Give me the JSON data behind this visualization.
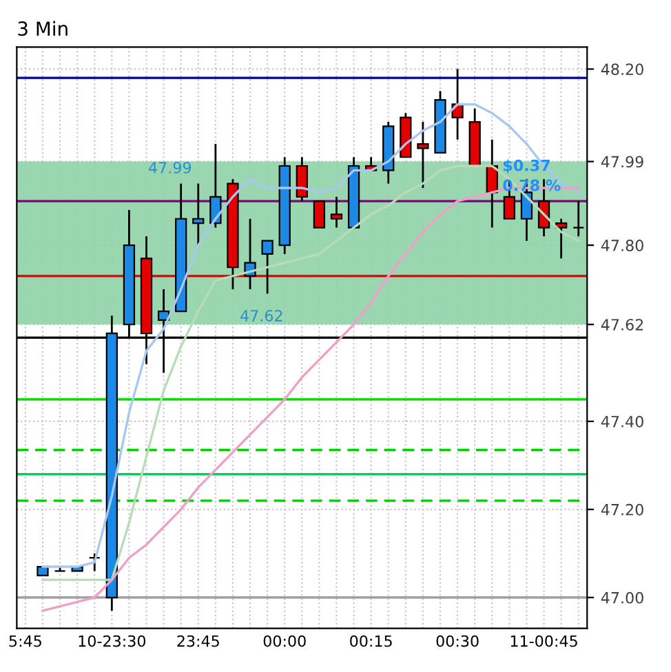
{
  "chart_data": {
    "type": "candlestick",
    "title": "3 Min",
    "categories": [
      "5:45",
      null,
      null,
      null,
      null,
      "10-23:30",
      null,
      null,
      null,
      null,
      "23:45",
      null,
      null,
      null,
      null,
      "00:00",
      null,
      null,
      null,
      null,
      "00:15",
      null,
      null,
      null,
      null,
      "00:30",
      null,
      null,
      null,
      null,
      "11-00:45",
      null,
      null
    ],
    "ohlc": [
      null,
      [
        47.05,
        47.07,
        47.05,
        47.07
      ],
      [
        47.06,
        47.07,
        47.06,
        47.06
      ],
      [
        47.06,
        47.07,
        47.06,
        47.07
      ],
      [
        47.09,
        47.1,
        47.06,
        47.09
      ],
      [
        47.0,
        47.64,
        46.97,
        47.6
      ],
      [
        47.62,
        47.88,
        47.59,
        47.8
      ],
      [
        47.77,
        47.82,
        47.53,
        47.6
      ],
      [
        47.63,
        47.7,
        47.51,
        47.65
      ],
      [
        47.65,
        47.94,
        47.65,
        47.86
      ],
      [
        47.85,
        47.94,
        47.8,
        47.86
      ],
      [
        47.85,
        48.03,
        47.84,
        47.91
      ],
      [
        47.94,
        47.95,
        47.7,
        47.75
      ],
      [
        47.73,
        47.86,
        47.7,
        47.76
      ],
      [
        47.78,
        47.81,
        47.69,
        47.81
      ],
      [
        47.8,
        48.0,
        47.78,
        47.98
      ],
      [
        47.98,
        48.0,
        47.9,
        47.91
      ],
      [
        47.9,
        47.9,
        47.84,
        47.84
      ],
      [
        47.87,
        47.91,
        47.84,
        47.86
      ],
      [
        47.84,
        48.0,
        47.84,
        47.98
      ],
      [
        47.98,
        48.0,
        47.97,
        47.97
      ],
      [
        47.97,
        48.08,
        47.94,
        48.07
      ],
      [
        48.09,
        48.1,
        48.0,
        48.0
      ],
      [
        48.03,
        48.08,
        47.93,
        48.02
      ],
      [
        48.01,
        48.15,
        48.01,
        48.13
      ],
      [
        48.12,
        48.2,
        48.04,
        48.09
      ],
      [
        48.08,
        48.11,
        47.98,
        47.98
      ],
      [
        47.98,
        48.04,
        47.84,
        47.92
      ],
      [
        47.91,
        47.95,
        47.86,
        47.86
      ],
      [
        47.86,
        47.95,
        47.81,
        47.92
      ],
      [
        47.9,
        47.95,
        47.82,
        47.84
      ],
      [
        47.85,
        47.86,
        47.77,
        47.84
      ],
      [
        47.84,
        47.9,
        47.82,
        47.84
      ]
    ],
    "colors": [
      null,
      "#1e88e5",
      "#000000",
      "#1e88e5",
      "#000000",
      "#1e88e5",
      "#1e88e5",
      "#e50000",
      "#1e88e5",
      "#1e88e5",
      "#1e88e5",
      "#1e88e5",
      "#e50000",
      "#1e88e5",
      "#1e88e5",
      "#1e88e5",
      "#e50000",
      "#e50000",
      "#e50000",
      "#1e88e5",
      "#e50000",
      "#1e88e5",
      "#e50000",
      "#e50000",
      "#1e88e5",
      "#e50000",
      "#e50000",
      "#e50000",
      "#e50000",
      "#1e88e5",
      "#e50000",
      "#e50000",
      "#000000"
    ],
    "series": [
      {
        "type": "line",
        "color": "#a8c8f0",
        "values": [
          null,
          47.07,
          47.07,
          47.07,
          47.08,
          47.23,
          47.42,
          47.56,
          47.61,
          47.7,
          47.8,
          47.86,
          47.91,
          47.95,
          47.93,
          47.93,
          47.93,
          47.92,
          47.93,
          47.97,
          47.97,
          47.99,
          48.03,
          48.06,
          48.08,
          48.12,
          48.12,
          48.1,
          48.07,
          48.03,
          47.98,
          47.94,
          47.92
        ]
      },
      {
        "type": "line",
        "color": "#b8dcb8",
        "values": [
          null,
          47.04,
          47.04,
          47.04,
          47.04,
          47.04,
          47.17,
          47.32,
          47.47,
          47.57,
          47.65,
          47.72,
          47.73,
          47.74,
          47.75,
          47.76,
          47.77,
          47.78,
          47.81,
          47.84,
          47.87,
          47.89,
          47.92,
          47.94,
          47.97,
          47.98,
          47.98,
          47.98,
          47.95,
          47.91,
          47.87,
          47.83,
          47.81
        ]
      },
      {
        "type": "line",
        "color": "#f0a0c8",
        "values": [
          null,
          46.97,
          46.98,
          46.99,
          47.0,
          47.04,
          47.09,
          47.12,
          47.16,
          47.2,
          47.25,
          47.29,
          47.33,
          47.37,
          47.41,
          47.45,
          47.5,
          47.54,
          47.58,
          47.62,
          47.67,
          47.73,
          47.78,
          47.83,
          47.87,
          47.9,
          47.91,
          47.92,
          47.93,
          47.93,
          47.93,
          47.93,
          47.93
        ]
      }
    ],
    "ylim": [
      46.93,
      48.25
    ],
    "yticks": [
      {
        "value": 47.0,
        "label": "47.00"
      },
      {
        "value": 47.2,
        "label": "47.20"
      },
      {
        "value": 47.4,
        "label": "47.40"
      },
      {
        "value": 47.62,
        "label": "47.62"
      },
      {
        "value": 47.8,
        "label": "47.80"
      },
      47.99,
      {
        "value": 48.2,
        "label": "48.20"
      }
    ],
    "ref_lines": [
      {
        "axis": "y",
        "value": 48.18,
        "color": "#0000a0",
        "line_style": "solid"
      },
      {
        "axis": "y",
        "value": 47.9,
        "color": "#800080",
        "line_style": "solid"
      },
      {
        "axis": "y",
        "value": 47.73,
        "color": "#e00000",
        "line_style": "solid"
      },
      {
        "axis": "y",
        "value": 47.59,
        "color": "#000000",
        "line_style": "solid"
      },
      {
        "axis": "y",
        "value": 47.45,
        "color": "#00e000",
        "line_style": "solid"
      },
      {
        "axis": "y",
        "value": 47.335,
        "color": "#00d000",
        "line_style": "dashed"
      },
      {
        "axis": "y",
        "value": 47.28,
        "color": "#00d060",
        "line_style": "solid"
      },
      {
        "axis": "y",
        "value": 47.22,
        "color": "#00d000",
        "line_style": "dashed"
      },
      {
        "axis": "y",
        "value": 47.0,
        "color": "#a0a0a0",
        "line_style": "solid"
      }
    ],
    "bands": [
      {
        "axis": "y",
        "from": 47.62,
        "to": 47.99,
        "color": "#8fd1a6"
      }
    ],
    "annotations": [
      {
        "text": "47.99",
        "y": 47.99
      },
      {
        "text": "47.62",
        "y": 47.62
      },
      "$0.37",
      "0.78 %"
    ],
    "grid": true
  }
}
